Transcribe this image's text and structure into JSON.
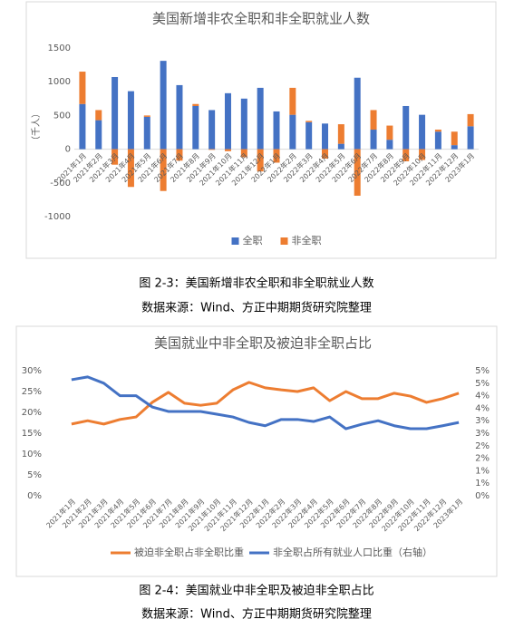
{
  "chart_data": [
    {
      "type": "bar",
      "stacked": true,
      "title": "美国新增非农全职和非全职就业人数",
      "y_label": "（千人）",
      "categories": [
        "2021年1月",
        "2021年2月",
        "2021年3月",
        "2021年4月",
        "2021年5月",
        "2021年6月",
        "2021年7月",
        "2021年8月",
        "2021年9月",
        "2021年10月",
        "2021年11月",
        "2021年12月",
        "2022年1月",
        "2022年2月",
        "2022年3月",
        "2022年4月",
        "2022年5月",
        "2022年6月",
        "2022年7月",
        "2022年8月",
        "2022年9月",
        "2022年10月",
        "2022年11月",
        "2022年12月",
        "2023年1月"
      ],
      "series": [
        {
          "name": "全职",
          "color": "#4472c4",
          "values": [
            670,
            430,
            1070,
            860,
            480,
            1310,
            950,
            640,
            580,
            830,
            750,
            910,
            560,
            510,
            400,
            380,
            80,
            1060,
            290,
            140,
            640,
            510,
            260,
            60,
            340
          ]
        },
        {
          "name": "非全职",
          "color": "#ed7d31",
          "values": [
            480,
            150,
            -230,
            -560,
            20,
            -620,
            -170,
            30,
            -10,
            -30,
            -120,
            -330,
            -200,
            400,
            20,
            -140,
            290,
            -690,
            290,
            210,
            -180,
            -160,
            30,
            200,
            180
          ]
        }
      ],
      "ylim": [
        -1000,
        1500
      ],
      "yticks": [
        -1000,
        -500,
        0,
        500,
        1000,
        1500
      ],
      "grid": false,
      "legend": "bottom"
    },
    {
      "type": "line",
      "title": "美国就业中非全职及被迫非全职占比",
      "categories": [
        "2021年1月",
        "2021年2月",
        "2021年3月",
        "2021年4月",
        "2021年5月",
        "2021年6月",
        "2021年7月",
        "2021年8月",
        "2021年9月",
        "2021年10月",
        "2021年11月",
        "2021年12月",
        "2022年1月",
        "2022年2月",
        "2022年3月",
        "2022年4月",
        "2022年5月",
        "2022年6月",
        "2022年7月",
        "2022年8月",
        "2022年9月",
        "2022年10月",
        "2022年11月",
        "2022年12月",
        "2023年1月"
      ],
      "series": [
        {
          "name": "被迫非全职占非全职比重",
          "color": "#ed7d31",
          "values": [
            17.2,
            18,
            17.2,
            18.3,
            18.9,
            22.4,
            24.8,
            22.2,
            21.7,
            22.2,
            25.4,
            27.2,
            25.9,
            25.4,
            25,
            25.9,
            22.8,
            25,
            23.3,
            23.3,
            24.6,
            23.9,
            22.4,
            23.3,
            24.6
          ]
        },
        {
          "name": "非全职占所有就业人口比重（右轴）",
          "color": "#4472c4",
          "axis": "y2",
          "values": [
            4.64,
            4.75,
            4.5,
            4.0,
            4.0,
            3.55,
            3.37,
            3.37,
            3.37,
            3.26,
            3.15,
            2.93,
            2.8,
            3.05,
            3.05,
            2.97,
            3.15,
            2.68,
            2.86,
            3.0,
            2.8,
            2.68,
            2.68,
            2.8,
            2.93
          ]
        }
      ],
      "ylim": [
        0,
        30
      ],
      "yticks": [
        {
          "value": 0,
          "label": "0%"
        },
        {
          "value": 5,
          "label": "5%"
        },
        {
          "value": 10,
          "label": "10%"
        },
        {
          "value": 15,
          "label": "15%"
        },
        {
          "value": 20,
          "label": "20%"
        },
        {
          "value": 25,
          "label": "25%"
        },
        {
          "value": 30,
          "label": "30%"
        }
      ],
      "y2lim": [
        0,
        5
      ],
      "y2ticks": [
        {
          "value": 0,
          "label": "0%"
        },
        {
          "value": 0.5,
          "label": "1%"
        },
        {
          "value": 1,
          "label": "1%"
        },
        {
          "value": 1.5,
          "label": "2%"
        },
        {
          "value": 2,
          "label": "2%"
        },
        {
          "value": 2.5,
          "label": "3%"
        },
        {
          "value": 3,
          "label": "3%"
        },
        {
          "value": 3.5,
          "label": "4%"
        },
        {
          "value": 4,
          "label": "4%"
        },
        {
          "value": 4.5,
          "label": "5%"
        },
        {
          "value": 5,
          "label": "5%"
        }
      ],
      "grid": false,
      "legend": "bottom"
    }
  ],
  "captions": [
    "图 2-3：美国新增非农全职和非全职就业人数",
    "数据来源：Wind、方正中期期货研究院整理",
    "图 2-4：美国就业中非全职及被迫非全职占比",
    "数据来源：Wind、方正中期期货研究院整理"
  ]
}
